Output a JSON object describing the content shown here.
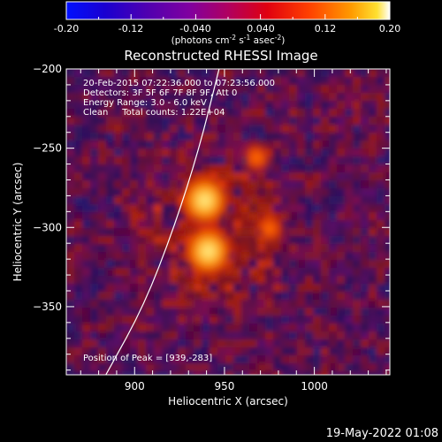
{
  "colorbar": {
    "ticks": [
      "-0.20",
      "-0.12",
      "-0.040",
      "0.040",
      "0.12",
      "0.20"
    ],
    "units_main": "(photons cm",
    "units_exp1": "-2",
    "units_mid": " s",
    "units_exp2": "-1",
    "units_end": " asec",
    "units_exp3": "-2",
    "units_close": ")",
    "range": [
      -0.2,
      0.2
    ]
  },
  "chart_data": {
    "type": "heatmap",
    "title": "Reconstructed RHESSI Image",
    "xlabel": "Heliocentric X (arcsec)",
    "ylabel": "Heliocentric Y (arcsec)",
    "xlim": [
      862,
      1042
    ],
    "ylim": [
      -393,
      -200
    ],
    "x_ticks": [
      900,
      950,
      1000
    ],
    "y_ticks": [
      -200,
      -250,
      -300,
      -350
    ],
    "annotations": [
      "20-Feb-2015 07:22:36.000 to 07:23:56.000",
      "Detectors: 3F 5F 6F 7F 8F 9F, Att 0",
      "Energy Range: 3.0 - 6.0 keV",
      "Clean     Total counts: 1.22E+04"
    ],
    "peak_label": "Position of Peak = [939,-283]",
    "peak": [
      939,
      -283
    ],
    "sources": [
      {
        "x": 939,
        "y": -283,
        "intensity": 1.0
      },
      {
        "x": 941,
        "y": -315,
        "intensity": 0.95
      },
      {
        "x": 968,
        "y": -256,
        "intensity": 0.45
      },
      {
        "x": 975,
        "y": -301,
        "intensity": 0.45
      }
    ],
    "limb_curve": [
      [
        884,
        -393
      ],
      [
        905,
        -350
      ],
      [
        922,
        -300
      ],
      [
        936,
        -250
      ],
      [
        947,
        -200
      ]
    ]
  },
  "footer": {
    "timestamp": "19-May-2022 01:08"
  }
}
